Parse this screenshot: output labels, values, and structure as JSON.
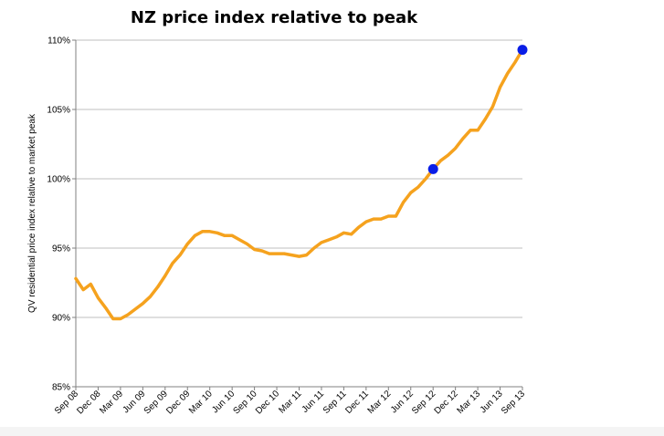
{
  "chart_data": {
    "type": "line",
    "title": "NZ price index relative to peak",
    "ylabel": "QV residential price index relative to market peak",
    "xlabel": "",
    "ylim": [
      85,
      110
    ],
    "yticks": [
      85,
      90,
      95,
      100,
      105,
      110
    ],
    "ytick_labels": [
      "85%",
      "90%",
      "95%",
      "100%",
      "105%",
      "110%"
    ],
    "x_tick_labels": [
      "Sep 08",
      "Dec 08",
      "Mar 09",
      "Jun 09",
      "Sep 09",
      "Dec 09",
      "Mar 10",
      "Jun 10",
      "Sep 10",
      "Dec 10",
      "Mar 11",
      "Jun 11",
      "Sep 11",
      "Dec 11",
      "Mar 12",
      "Jun 12",
      "Sep 12",
      "Dec 12",
      "Mar 13",
      "Jun 13",
      "Sep 13"
    ],
    "grid": true,
    "series": [
      {
        "color": "#f5a21e",
        "values": [
          92.8,
          92.0,
          92.4,
          91.4,
          90.7,
          89.9,
          89.9,
          90.2,
          90.6,
          91.0,
          91.5,
          92.2,
          93.0,
          93.9,
          94.5,
          95.3,
          95.9,
          96.2,
          96.2,
          96.1,
          95.9,
          95.9,
          95.6,
          95.3,
          94.9,
          94.8,
          94.6,
          94.6,
          94.6,
          94.5,
          94.4,
          94.5,
          95.0,
          95.4,
          95.6,
          95.8,
          96.1,
          96.0,
          96.5,
          96.9,
          97.1,
          97.1,
          97.3,
          97.3,
          98.3,
          99.0,
          99.4,
          100.0,
          100.7,
          101.3,
          101.7,
          102.2,
          102.9,
          103.5,
          103.5,
          104.3,
          105.2,
          106.6,
          107.6,
          108.4,
          109.3
        ]
      }
    ],
    "highlight_points": [
      {
        "index": 48,
        "value": 100.7,
        "color": "#0a1ee6"
      },
      {
        "index": 60,
        "value": 109.3,
        "color": "#0a1ee6"
      }
    ]
  }
}
